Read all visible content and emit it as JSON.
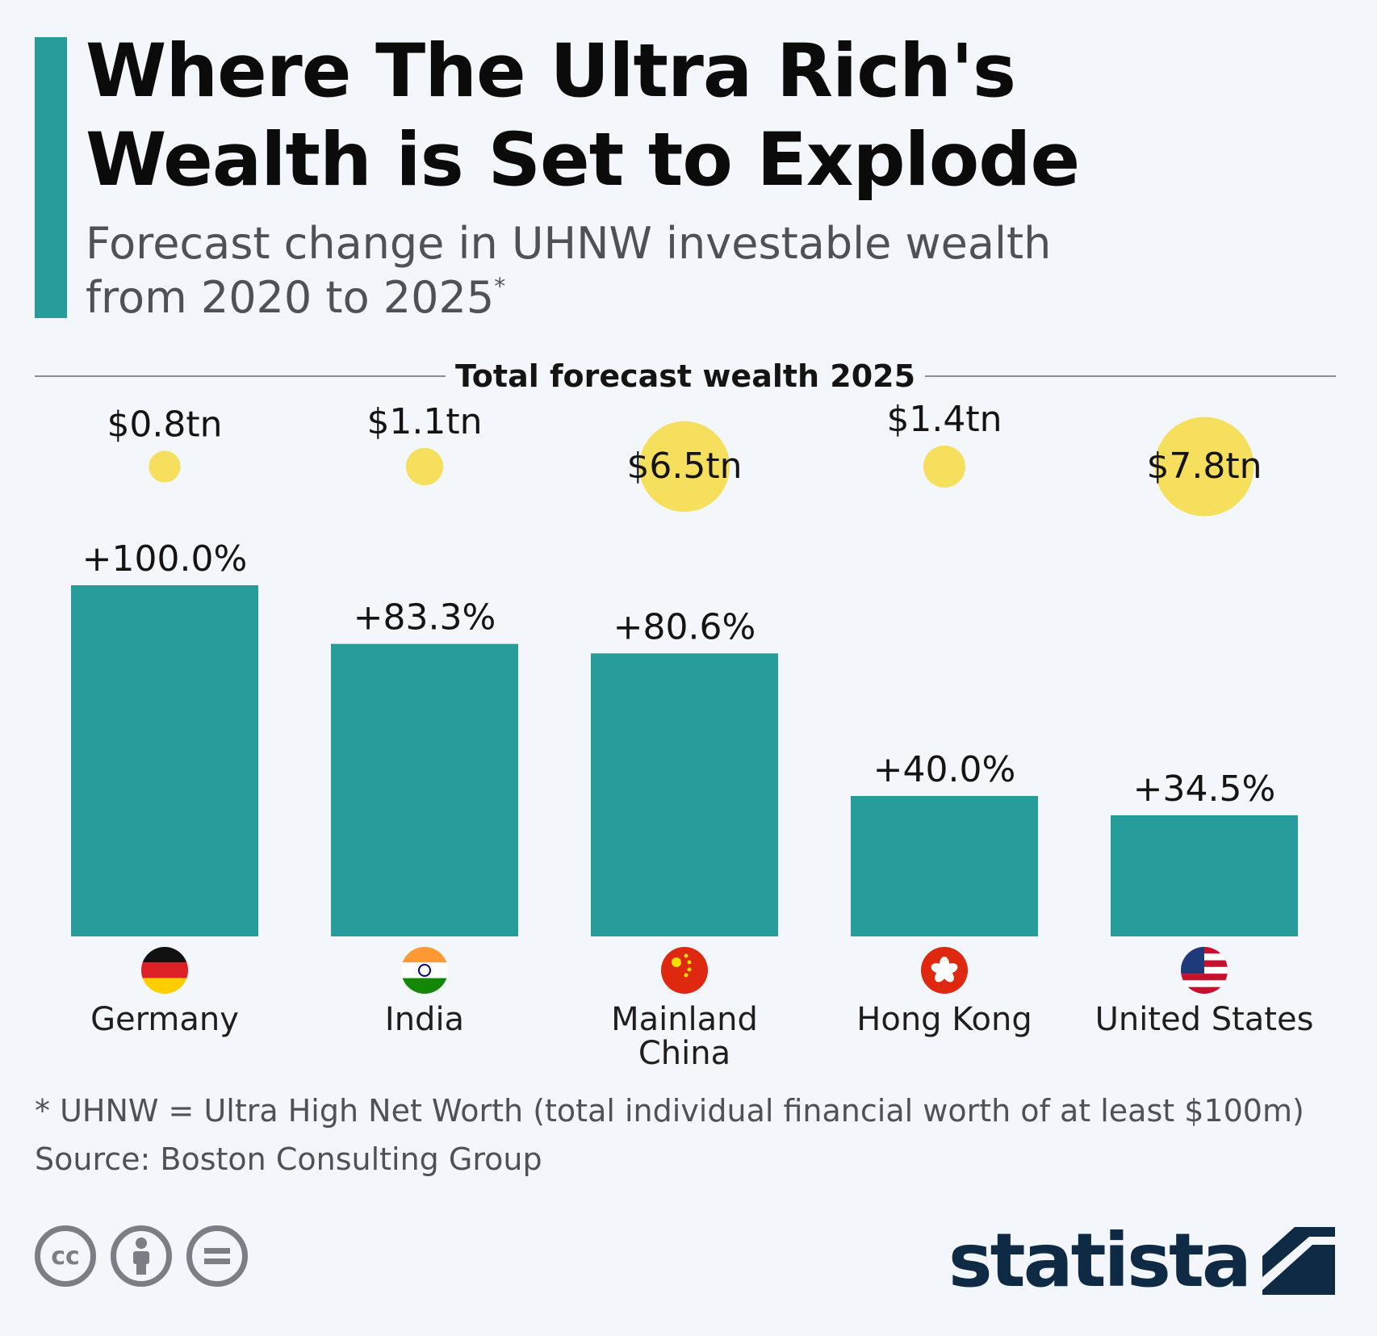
{
  "title_lines": [
    "Where The Ultra Rich's",
    "Wealth is Set to Explode"
  ],
  "subtitle_lines": [
    "Forecast change in UHNW investable wealth",
    "from 2020 to 2025"
  ],
  "subtitle_marker": "*",
  "section_label": "Total forecast wealth 2025",
  "footnote": "* UHNW = Ultra High Net Worth (total individual financial worth of at least $100m)",
  "source": "Source: Boston Consulting Group",
  "brand": "statista",
  "license_icons": [
    "cc-icon",
    "by-icon",
    "nd-icon"
  ],
  "license_text": [
    "cc"
  ],
  "colors": {
    "bar": "#269c9b",
    "bubble": "#f6df5c",
    "accent": "#269c9b",
    "brand": "#0f2a45"
  },
  "chart_data": {
    "type": "bar",
    "categories": [
      "Germany",
      "India",
      "Mainland China",
      "Hong Kong",
      "United States"
    ],
    "category_lines": [
      [
        "Germany"
      ],
      [
        "India"
      ],
      [
        "Mainland",
        "China"
      ],
      [
        "Hong Kong"
      ],
      [
        "United States"
      ]
    ],
    "flags": [
      "germany-flag-icon",
      "india-flag-icon",
      "china-flag-icon",
      "hong-kong-flag-icon",
      "us-flag-icon"
    ],
    "series": [
      {
        "name": "Forecast change in UHNW investable wealth",
        "values": [
          100.0,
          83.3,
          80.6,
          40.0,
          34.5
        ],
        "unit": "%"
      },
      {
        "name": "Total forecast wealth 2025",
        "values": [
          0.8,
          1.1,
          6.5,
          1.4,
          7.8
        ],
        "unit": "tn"
      }
    ],
    "pct_labels": [
      "+100.0%",
      "+83.3%",
      "+80.6%",
      "+40.0%",
      "+34.5%"
    ],
    "wealth_labels": [
      "$0.8tn",
      "$1.1tn",
      "$6.5tn",
      "$1.4tn",
      "$7.8tn"
    ],
    "ylim": [
      0,
      100
    ]
  }
}
